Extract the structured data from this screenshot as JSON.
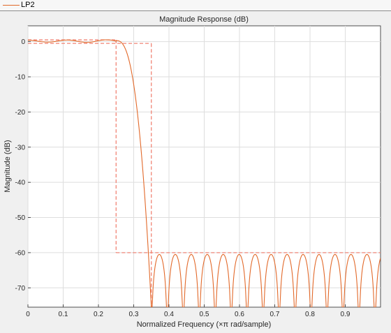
{
  "legend": {
    "label": "LP2",
    "color": "#e2692a"
  },
  "chart_data": {
    "type": "line",
    "title": "Magnitude Response (dB)",
    "xlabel": "Normalized Frequency (×π rad/sample)",
    "ylabel": "Magnitude (dB)",
    "xlim": [
      0,
      1
    ],
    "ylim": [
      -75.5,
      4.5
    ],
    "xticks": [
      0,
      0.1,
      0.2,
      0.3,
      0.4,
      0.5,
      0.6,
      0.7,
      0.8,
      0.9
    ],
    "xtick_labels": [
      "0",
      "0.1",
      "0.2",
      "0.3",
      "0.4",
      "0.5",
      "0.6",
      "0.7",
      "0.8",
      "0.9"
    ],
    "yticks": [
      0,
      -10,
      -20,
      -30,
      -40,
      -50,
      -60,
      -70
    ],
    "ytick_labels": [
      "0",
      "-10",
      "-20",
      "-30",
      "-40",
      "-50",
      "-60",
      "-70"
    ],
    "grid": true,
    "series": [
      {
        "name": "LP2",
        "color": "#e2692a",
        "style": "solid",
        "passband_edge": 0.25,
        "stopband_edge": 0.35,
        "passband_ripple_db": 0.5,
        "stopband_level_db": -60.5,
        "stopband_null_count": 14
      }
    ],
    "mask": {
      "color": "#f07a6a",
      "style": "dashed",
      "x": [
        0,
        0.25,
        0.25,
        0.35,
        0.35,
        0.35,
        1
      ],
      "passband_upper": {
        "x": [
          0,
          0.25
        ],
        "y": [
          0.5,
          0.5
        ]
      },
      "passband_lower": {
        "x": [
          0,
          0.35
        ],
        "y": [
          -0.5,
          -0.5
        ]
      },
      "transition_upper_drop": {
        "x": [
          0.25,
          0.25
        ],
        "y": [
          0.5,
          -60
        ]
      },
      "stopband": {
        "x": [
          0.25,
          1
        ],
        "y": [
          -60,
          -60
        ]
      },
      "passband_right": {
        "x": [
          0.35,
          0.35
        ],
        "y": [
          -0.5,
          -75.5
        ]
      }
    }
  }
}
